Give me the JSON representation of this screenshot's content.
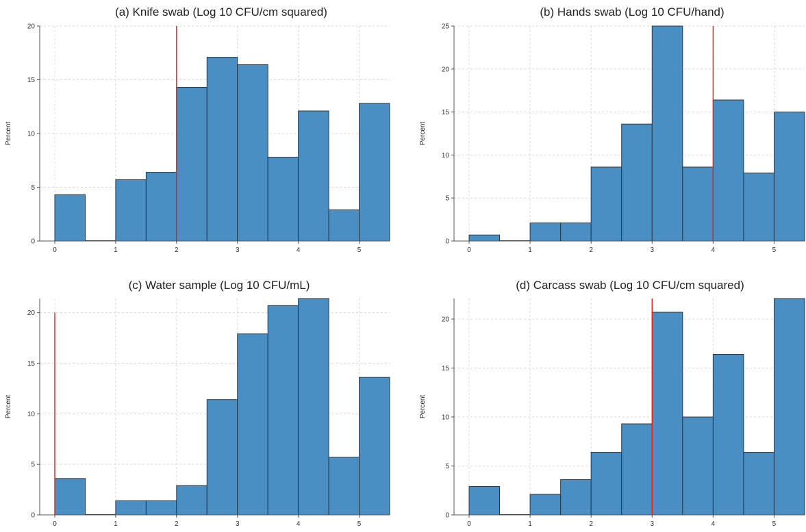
{
  "chart_data": [
    {
      "type": "histogram",
      "title": "(a) Knife swab (Log 10 CFU/cm squared)",
      "ylabel": "Percent",
      "bin_width": 0.5,
      "bin_starts": [
        0,
        0.5,
        1,
        1.5,
        2,
        2.5,
        3,
        3.5,
        4,
        4.5,
        5
      ],
      "values": [
        4.3,
        0,
        5.7,
        6.4,
        14.3,
        17.1,
        16.4,
        7.8,
        12.1,
        2.9,
        12.8
      ],
      "xlim": [
        0,
        5.5
      ],
      "ylim": [
        0,
        20
      ],
      "xticks": [
        0,
        1,
        2,
        3,
        4,
        5
      ],
      "yticks": [
        0,
        5,
        10,
        15,
        20
      ],
      "reference_line": {
        "x": 2,
        "color": "#e8201a"
      },
      "bar_color": "#4a8fc4",
      "grid": true
    },
    {
      "type": "histogram",
      "title": "(b) Hands swab (Log 10 CFU/hand)",
      "ylabel": "Percent",
      "bin_width": 0.5,
      "bin_starts": [
        0,
        0.5,
        1,
        1.5,
        2,
        2.5,
        3,
        3.5,
        4,
        4.5,
        5
      ],
      "values": [
        0.7,
        0,
        2.1,
        2.1,
        8.6,
        13.6,
        25.0,
        8.6,
        16.4,
        7.9,
        15.0
      ],
      "xlim": [
        0,
        5.5
      ],
      "ylim": [
        0,
        25
      ],
      "xticks": [
        0,
        1,
        2,
        3,
        4,
        5
      ],
      "yticks": [
        0,
        5,
        10,
        15,
        20,
        25
      ],
      "reference_line": {
        "x": 4,
        "color": "#e8201a"
      },
      "bar_color": "#4a8fc4",
      "grid": true
    },
    {
      "type": "histogram",
      "title": "(c) Water sample (Log 10 CFU/mL)",
      "ylabel": "Percent",
      "bin_width": 0.5,
      "bin_starts": [
        0,
        0.5,
        1,
        1.5,
        2,
        2.5,
        3,
        3.5,
        4,
        4.5,
        5
      ],
      "values": [
        3.6,
        0,
        1.4,
        1.4,
        2.9,
        11.4,
        17.9,
        20.7,
        21.4,
        5.7,
        13.6
      ],
      "xlim": [
        0,
        5.5
      ],
      "ylim": [
        0,
        21.4
      ],
      "xticks": [
        0,
        1,
        2,
        3,
        4,
        5
      ],
      "yticks": [
        0,
        5,
        10,
        15,
        20
      ],
      "reference_line": {
        "x": 0,
        "y_top": 20,
        "color": "#e8201a"
      },
      "bar_color": "#4a8fc4",
      "grid": true
    },
    {
      "type": "histogram",
      "title": "(d) Carcass swab (Log 10 CFU/cm squared)",
      "ylabel": "Percent",
      "bin_width": 0.5,
      "bin_starts": [
        0,
        0.5,
        1,
        1.5,
        2,
        2.5,
        3,
        3.5,
        4,
        4.5,
        5
      ],
      "values": [
        2.9,
        0,
        2.1,
        3.6,
        6.4,
        9.3,
        20.7,
        10.0,
        16.4,
        6.4,
        22.1
      ],
      "xlim": [
        0,
        5.5
      ],
      "ylim": [
        0,
        22.1
      ],
      "xticks": [
        0,
        1,
        2,
        3,
        4,
        5
      ],
      "yticks": [
        0,
        5,
        10,
        15,
        20
      ],
      "reference_line": {
        "x": 3,
        "color": "#e8201a"
      },
      "bar_color": "#4a8fc4",
      "grid": true
    }
  ]
}
